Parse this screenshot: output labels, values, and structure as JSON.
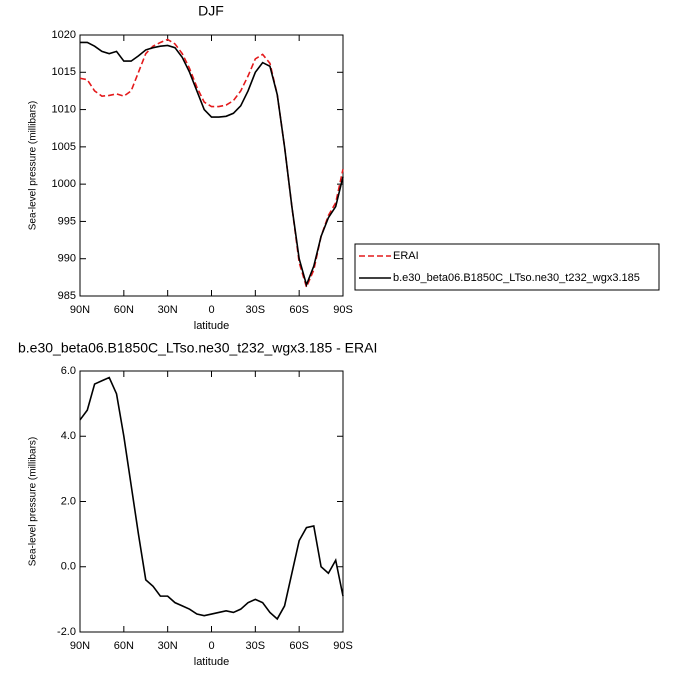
{
  "chart_data": [
    {
      "type": "line",
      "title": "DJF",
      "xlabel": "latitude",
      "ylabel": "Sea-level pressure (millibars)",
      "x": [
        90,
        85,
        80,
        75,
        70,
        65,
        60,
        55,
        50,
        45,
        40,
        35,
        30,
        25,
        20,
        15,
        10,
        5,
        0,
        -5,
        -10,
        -15,
        -20,
        -25,
        -30,
        -35,
        -40,
        -45,
        -50,
        -55,
        -60,
        -65,
        -70,
        -75,
        -80,
        -85,
        -90
      ],
      "xlim": [
        90,
        -90
      ],
      "xticks": [
        {
          "value": 90,
          "label": "90N"
        },
        {
          "value": 60,
          "label": "60N"
        },
        {
          "value": 30,
          "label": "30N"
        },
        0,
        {
          "value": -30,
          "label": "30S"
        },
        {
          "value": -60,
          "label": "60S"
        },
        {
          "value": -90,
          "label": "90S"
        }
      ],
      "ylim": [
        985,
        1020
      ],
      "yticks": [
        985,
        990,
        995,
        1000,
        1005,
        1010,
        1015,
        1020
      ],
      "legend": "right",
      "series": [
        {
          "name": "ERAI",
          "color": "#e41a1c",
          "dashed": true,
          "values": [
            1014.2,
            1014,
            1012.5,
            1011.8,
            1011.9,
            1012.1,
            1011.8,
            1012.5,
            1015,
            1017.5,
            1018.5,
            1019,
            1019.4,
            1018.8,
            1017.5,
            1015.5,
            1013,
            1011,
            1010.4,
            1010.4,
            1010.6,
            1011.2,
            1012.5,
            1014.5,
            1016.8,
            1017.4,
            1016.2,
            1012,
            1005,
            997,
            989.5,
            986.2,
            988.5,
            993,
            995.8,
            997.5,
            1002
          ]
        },
        {
          "name": "b.e30_beta06.B1850C_LTso.ne30_t232_wgx3.185",
          "color": "#000000",
          "dashed": false,
          "values": [
            1019,
            1019,
            1018.5,
            1017.8,
            1017.5,
            1017.8,
            1016.5,
            1016.5,
            1017.2,
            1018,
            1018.3,
            1018.5,
            1018.6,
            1018.3,
            1017,
            1015,
            1012.5,
            1010,
            1009,
            1009,
            1009.1,
            1009.5,
            1010.5,
            1012.5,
            1015,
            1016.3,
            1015.8,
            1012,
            1005,
            997,
            990,
            986.5,
            989,
            993,
            995.5,
            997,
            1001
          ]
        }
      ]
    },
    {
      "type": "line",
      "title": "b.e30_beta06.B1850C_LTso.ne30_t232_wgx3.185 - ERAI",
      "xlabel": "latitude",
      "ylabel": "Sea-level pressure (millibars)",
      "x": [
        90,
        85,
        80,
        75,
        70,
        65,
        60,
        55,
        50,
        45,
        40,
        35,
        30,
        25,
        20,
        15,
        10,
        5,
        0,
        -5,
        -10,
        -15,
        -20,
        -25,
        -30,
        -35,
        -40,
        -45,
        -50,
        -55,
        -60,
        -65,
        -70,
        -75,
        -80,
        -85,
        -90
      ],
      "xlim": [
        90,
        -90
      ],
      "xticks": [
        {
          "value": 90,
          "label": "90N"
        },
        {
          "value": 60,
          "label": "60N"
        },
        {
          "value": 30,
          "label": "30N"
        },
        0,
        {
          "value": -30,
          "label": "30S"
        },
        {
          "value": -60,
          "label": "60S"
        },
        {
          "value": -90,
          "label": "90S"
        }
      ],
      "ylim": [
        -2,
        6
      ],
      "yticks": [
        {
          "value": -2,
          "label": "-2.0"
        },
        {
          "value": 0,
          "label": "0.0"
        },
        {
          "value": 2,
          "label": "2.0"
        },
        {
          "value": 4,
          "label": "4.0"
        },
        {
          "value": 6,
          "label": "6.0"
        }
      ],
      "series": [
        {
          "color": "#000000",
          "dashed": false,
          "values": [
            4.5,
            4.8,
            5.6,
            5.7,
            5.8,
            5.3,
            4,
            2.5,
            1,
            -0.4,
            -0.6,
            -0.9,
            -0.9,
            -1.1,
            -1.2,
            -1.3,
            -1.45,
            -1.5,
            -1.45,
            -1.4,
            -1.35,
            -1.4,
            -1.3,
            -1.1,
            -1,
            -1.1,
            -1.4,
            -1.6,
            -1.2,
            -0.2,
            0.8,
            1.2,
            1.25,
            0,
            -0.2,
            0.2,
            -0.9
          ]
        }
      ]
    }
  ]
}
